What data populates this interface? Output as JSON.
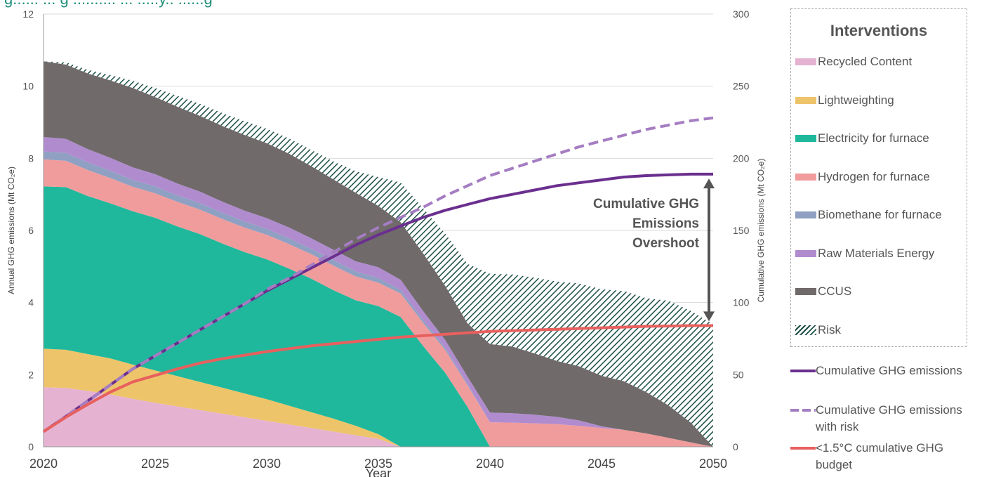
{
  "chart_data": {
    "type": "area",
    "title_fragment": "g...... ... g .......... ... .....y.. ......g",
    "xlabel": "Year",
    "ylabel_left": "Annual GHG emissions (Mt CO₂e)",
    "ylabel_right": "Cumulative GHG emissions (Mt CO₂e)",
    "x": [
      2020,
      2021,
      2022,
      2023,
      2024,
      2025,
      2026,
      2027,
      2028,
      2029,
      2030,
      2031,
      2032,
      2033,
      2034,
      2035,
      2036,
      2037,
      2038,
      2039,
      2040,
      2041,
      2042,
      2043,
      2044,
      2045,
      2046,
      2047,
      2048,
      2049,
      2050
    ],
    "x_ticks": [
      2020,
      2025,
      2030,
      2035,
      2040,
      2045,
      2050
    ],
    "ylim_left": [
      0,
      12
    ],
    "yticks_left": [
      0,
      2,
      4,
      6,
      8,
      10,
      12
    ],
    "ylim_right": [
      0,
      300
    ],
    "yticks_right": [
      0,
      50,
      100,
      150,
      200,
      250,
      300
    ],
    "stack_order_bottom_to_top": [
      "Recycled Content",
      "Lightweighting",
      "Electricity for furnace",
      "Hydrogen for furnace",
      "Biomethane for furnace",
      "Raw Materials Energy",
      "CCUS"
    ],
    "series": [
      {
        "name": "Recycled Content",
        "color": "#e5b3d1",
        "values": [
          1.65,
          1.63,
          1.55,
          1.45,
          1.33,
          1.22,
          1.12,
          1.02,
          0.92,
          0.82,
          0.72,
          0.62,
          0.52,
          0.42,
          0.32,
          0.22,
          0,
          0,
          0,
          0,
          0,
          0,
          0,
          0,
          0,
          0,
          0,
          0,
          0,
          0,
          0
        ]
      },
      {
        "name": "Lightweighting",
        "color": "#eec46a",
        "values": [
          1.07,
          1.06,
          1.02,
          1.0,
          0.95,
          0.9,
          0.84,
          0.78,
          0.72,
          0.66,
          0.6,
          0.52,
          0.44,
          0.36,
          0.26,
          0.13,
          0,
          0,
          0,
          0,
          0,
          0,
          0,
          0,
          0,
          0,
          0,
          0,
          0,
          0,
          0
        ]
      },
      {
        "name": "Electricity for furnace",
        "color": "#1fb89c",
        "values": [
          4.5,
          4.51,
          4.38,
          4.3,
          4.25,
          4.23,
          4.15,
          4.1,
          4.0,
          3.92,
          3.88,
          3.8,
          3.7,
          3.56,
          3.48,
          3.55,
          3.6,
          2.8,
          2.05,
          1.1,
          0,
          0,
          0,
          0,
          0,
          0,
          0,
          0,
          0,
          0,
          0
        ]
      },
      {
        "name": "Hydrogen for furnace",
        "color": "#f09c9c",
        "values": [
          0.75,
          0.73,
          0.72,
          0.7,
          0.68,
          0.68,
          0.68,
          0.68,
          0.68,
          0.68,
          0.68,
          0.68,
          0.68,
          0.68,
          0.66,
          0.65,
          0.65,
          0.64,
          0.63,
          0.6,
          0.68,
          0.67,
          0.65,
          0.63,
          0.58,
          0.52,
          0.47,
          0.37,
          0.25,
          0.12,
          0
        ]
      },
      {
        "name": "Biomethane for furnace",
        "color": "#8fa0c2",
        "values": [
          0.22,
          0.22,
          0.21,
          0.2,
          0.19,
          0.19,
          0.18,
          0.18,
          0.17,
          0.17,
          0.16,
          0.16,
          0.15,
          0.15,
          0.14,
          0.13,
          0.1,
          0.08,
          0.06,
          0.04,
          0,
          0,
          0,
          0,
          0,
          0,
          0,
          0,
          0,
          0,
          0
        ]
      },
      {
        "name": "Raw Materials Energy",
        "color": "#b08ccf",
        "values": [
          0.4,
          0.39,
          0.37,
          0.36,
          0.35,
          0.34,
          0.33,
          0.32,
          0.31,
          0.3,
          0.3,
          0.3,
          0.29,
          0.29,
          0.28,
          0.3,
          0.28,
          0.25,
          0.22,
          0.2,
          0.27,
          0.26,
          0.24,
          0.2,
          0.15,
          0.05,
          0,
          0,
          0,
          0,
          0
        ]
      },
      {
        "name": "CCUS",
        "color": "#706a6a",
        "values": [
          2.1,
          2.06,
          2.1,
          2.15,
          2.2,
          2.14,
          2.13,
          2.1,
          2.1,
          2.1,
          2.08,
          2.05,
          2.0,
          1.95,
          1.9,
          1.7,
          1.6,
          1.6,
          1.5,
          1.48,
          1.9,
          1.85,
          1.7,
          1.55,
          1.5,
          1.4,
          1.35,
          1.15,
          0.9,
          0.55,
          0
        ]
      },
      {
        "name": "Risk",
        "pattern": "hatch",
        "values": [
          0,
          0.06,
          0.1,
          0.15,
          0.2,
          0.25,
          0.3,
          0.33,
          0.36,
          0.38,
          0.4,
          0.42,
          0.45,
          0.5,
          0.6,
          0.8,
          1.1,
          1.25,
          1.45,
          1.65,
          1.95,
          2.0,
          2.1,
          2.2,
          2.3,
          2.4,
          2.5,
          2.6,
          2.9,
          3.1,
          3.4
        ]
      }
    ],
    "line_series": [
      {
        "name": "Cumulative GHG emissions",
        "axis": "right",
        "color": "#6b2f8f",
        "style": "solid",
        "values": [
          10.5,
          21,
          32,
          43,
          54,
          63,
          72,
          81,
          90,
          99,
          108,
          116,
          124,
          132,
          140,
          147,
          153,
          159,
          164,
          168,
          172,
          175,
          178,
          181,
          183,
          185,
          187,
          188,
          188.5,
          189,
          189
        ]
      },
      {
        "name": "Cumulative GHG emissions with risk",
        "axis": "right",
        "color": "#a57dc2",
        "style": "dashed",
        "values": [
          10.5,
          21,
          32,
          43,
          54,
          63,
          72,
          81,
          90,
          99,
          109,
          117,
          126,
          135,
          144,
          152,
          159,
          166,
          174,
          181,
          188,
          193,
          198,
          203,
          208,
          212,
          216,
          220,
          223,
          226,
          228
        ]
      },
      {
        "name": "<1.5°C cumulative GHG budget",
        "axis": "right",
        "color": "#e8605e",
        "style": "solid",
        "values": [
          10.5,
          20.5,
          29.5,
          38,
          45,
          49.5,
          54,
          58,
          61,
          63.5,
          66,
          68,
          70,
          71.5,
          73,
          74.5,
          76,
          77,
          78,
          79,
          80,
          80.5,
          81,
          81.5,
          82,
          82.5,
          83,
          83.5,
          83.7,
          84,
          84
        ]
      }
    ],
    "annotation": {
      "lines": [
        "Cumulative GHG",
        "Emissions",
        "Overshoot"
      ],
      "arrow_x": 2050,
      "arrow_from_right": 186,
      "arrow_to_right": 87
    },
    "legend": {
      "title": "Interventions",
      "position": "right",
      "items": [
        "Recycled Content",
        "Lightweighting",
        "Electricity for furnace",
        "Hydrogen for furnace",
        "Biomethane for furnace",
        "Raw Materials Energy",
        "CCUS",
        "Risk"
      ],
      "line_items": [
        {
          "label": "Cumulative GHG emissions",
          "lines": [
            "Cumulative GHG emissions"
          ]
        },
        {
          "label": "Cumulative GHG emissions with risk",
          "lines": [
            "Cumulative GHG emissions",
            "with risk"
          ]
        },
        {
          "label": "<1.5°C cumulative GHG budget",
          "lines": [
            "<1.5°C cumulative GHG",
            "budget"
          ]
        }
      ]
    }
  }
}
